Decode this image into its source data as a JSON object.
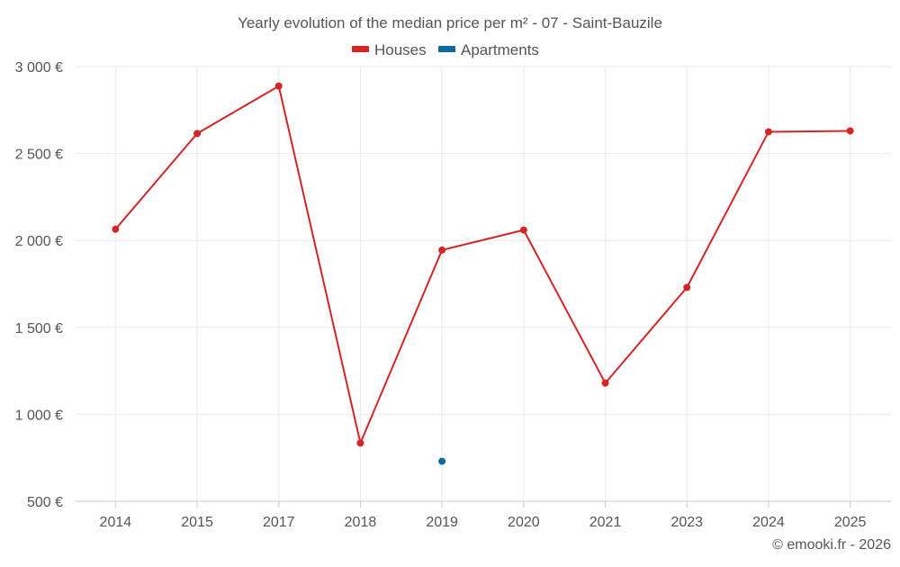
{
  "chart_data": {
    "type": "line",
    "title": "Yearly evolution of the median price per m² - 07 - Saint-Bauzile",
    "categories": [
      "2014",
      "2015",
      "2017",
      "2018",
      "2019",
      "2020",
      "2021",
      "2023",
      "2024",
      "2025"
    ],
    "series": [
      {
        "name": "Houses",
        "color": "#d32626",
        "values": [
          2065,
          2615,
          2888,
          835,
          1945,
          2060,
          1180,
          1730,
          2625,
          2630
        ]
      },
      {
        "name": "Apartments",
        "color": "#0f6a9e",
        "values": [
          null,
          null,
          null,
          null,
          730,
          null,
          null,
          null,
          null,
          null
        ]
      }
    ],
    "y_ticks": [
      500,
      1000,
      1500,
      2000,
      2500,
      3000
    ],
    "y_tick_labels": [
      "500 €",
      "1 000 €",
      "1 500 €",
      "2 000 €",
      "2 500 €",
      "3 000 €"
    ],
    "ylim": [
      500,
      3000
    ],
    "grid": true,
    "legend_position": "top-center",
    "credit": "© emooki.fr - 2026"
  }
}
